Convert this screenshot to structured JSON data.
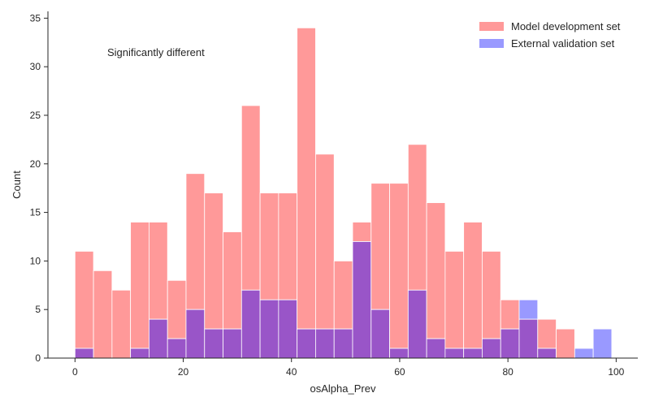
{
  "chart_data": {
    "type": "bar",
    "xlabel": "osAlpha_Prev",
    "ylabel": "Count",
    "xlim": [
      -5,
      104
    ],
    "ylim": [
      0,
      35.7
    ],
    "grid": false,
    "legend_position": "top-right",
    "annotation": "Significantly different",
    "x_ticks": [
      0,
      20,
      40,
      60,
      80,
      100
    ],
    "y_ticks": [
      0,
      5,
      10,
      15,
      20,
      25,
      30,
      35
    ],
    "bin_start": 0,
    "bin_width": 3.42,
    "colors": {
      "Model development set": "#ff9999",
      "External validation set": "#9999ff",
      "overlap": "#9955c8",
      "edge": "#ffffff",
      "axis": "#262626"
    },
    "series": [
      {
        "name": "Model development set",
        "values": [
          11,
          9,
          7,
          14,
          14,
          8,
          19,
          17,
          13,
          26,
          17,
          17,
          34,
          21,
          10,
          14,
          18,
          18,
          22,
          16,
          11,
          14,
          11,
          6,
          4,
          4,
          3,
          0,
          0
        ]
      },
      {
        "name": "External validation set",
        "values": [
          1,
          0,
          0,
          1,
          4,
          2,
          5,
          3,
          3,
          7,
          6,
          6,
          3,
          3,
          3,
          12,
          5,
          1,
          7,
          2,
          1,
          1,
          2,
          3,
          6,
          1,
          0,
          1,
          3
        ]
      }
    ]
  }
}
